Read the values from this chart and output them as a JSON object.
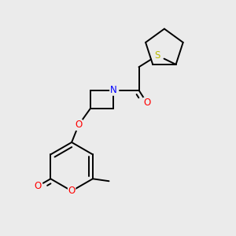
{
  "background_color": "#ebebeb",
  "atom_colors": {
    "O": "#ff0000",
    "N": "#0000ff",
    "S": "#bbbb00",
    "C": "#000000"
  },
  "bond_color": "#000000",
  "bond_width": 1.4,
  "figsize": [
    3.0,
    3.0
  ],
  "dpi": 100
}
